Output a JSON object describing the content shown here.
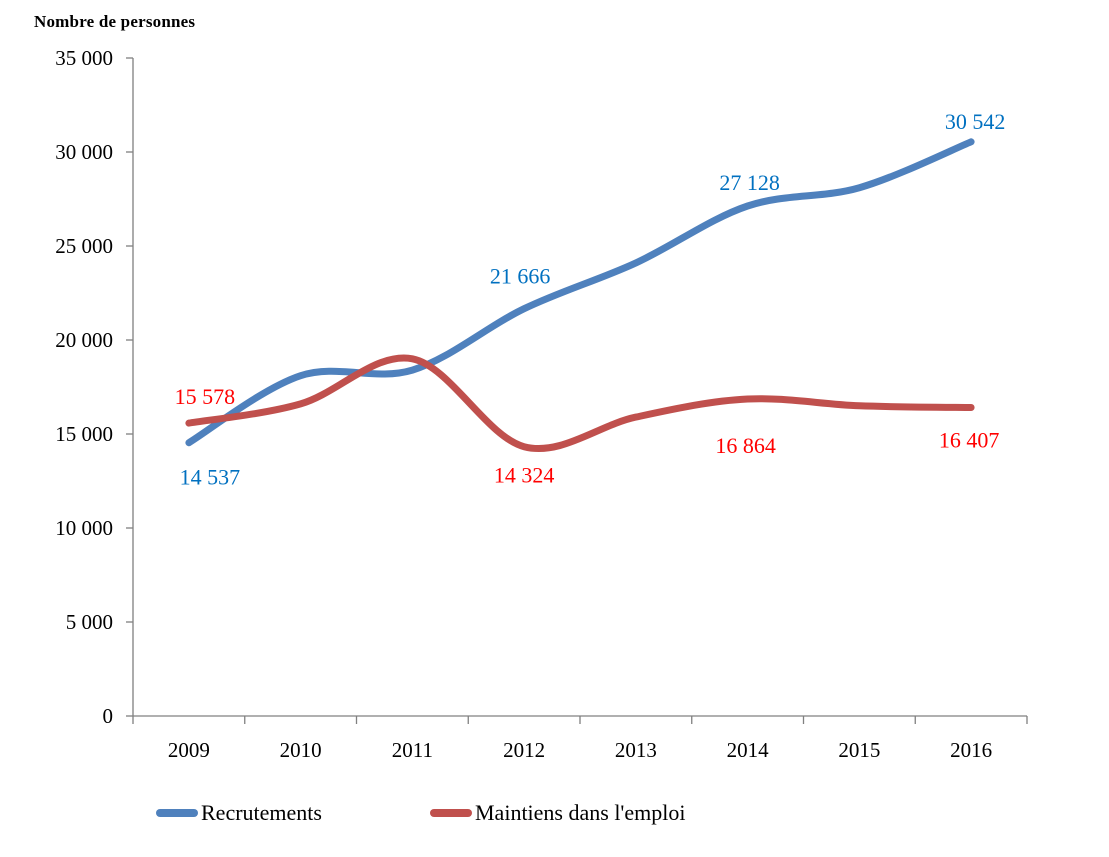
{
  "colors": {
    "background": "#ffffff",
    "axis": "#808080",
    "text": "#000000",
    "recrutements_line": "#4F81BD",
    "recrutements_label": "#0070C0",
    "maintiens_line": "#C0504D",
    "maintiens_label": "#FF0000"
  },
  "chart_data": {
    "type": "line",
    "smooth": true,
    "grid": false,
    "axis_title": "Nombre de personnes",
    "categories": [
      "2009",
      "2010",
      "2011",
      "2012",
      "2013",
      "2014",
      "2015",
      "2016"
    ],
    "ylim": [
      0,
      35000
    ],
    "ytick_step": 5000,
    "ytick_labels": [
      "0",
      "5 000",
      "10 000",
      "15 000",
      "20 000",
      "25 000",
      "30 000",
      "35 000"
    ],
    "legend_position": "bottom",
    "series": [
      {
        "id": "recrutements",
        "name": "Recrutements",
        "color": "#4F81BD",
        "label_color": "#0070C0",
        "values": [
          14537,
          18100,
          18400,
          21666,
          24100,
          27128,
          28100,
          30542
        ],
        "labeled_values_note": "values for 2010, 2011, 2013, 2015 estimated from pixels",
        "point_labels": [
          {
            "index": 0,
            "text": "14 537",
            "dx": 21,
            "dy": 42
          },
          {
            "index": 3,
            "text": "21 666",
            "dx": -4,
            "dy": -25
          },
          {
            "index": 5,
            "text": "27 128",
            "dx": 2,
            "dy": -16
          },
          {
            "index": 7,
            "text": "30 542",
            "dx": 4,
            "dy": -13
          }
        ]
      },
      {
        "id": "maintiens",
        "name": "Maintiens dans l'emploi",
        "color": "#C0504D",
        "label_color": "#FF0000",
        "values": [
          15578,
          16600,
          19000,
          14324,
          15900,
          16864,
          16500,
          16407
        ],
        "labeled_values_note": "values for 2010, 2011, 2013, 2015 estimated from pixels",
        "point_labels": [
          {
            "index": 0,
            "text": "15 578",
            "dx": 16,
            "dy": -19
          },
          {
            "index": 3,
            "text": "14 324",
            "dx": 0,
            "dy": 36
          },
          {
            "index": 5,
            "text": "16 864",
            "dx": -2,
            "dy": 54
          },
          {
            "index": 7,
            "text": "16 407",
            "dx": -2,
            "dy": 40
          }
        ]
      }
    ]
  }
}
